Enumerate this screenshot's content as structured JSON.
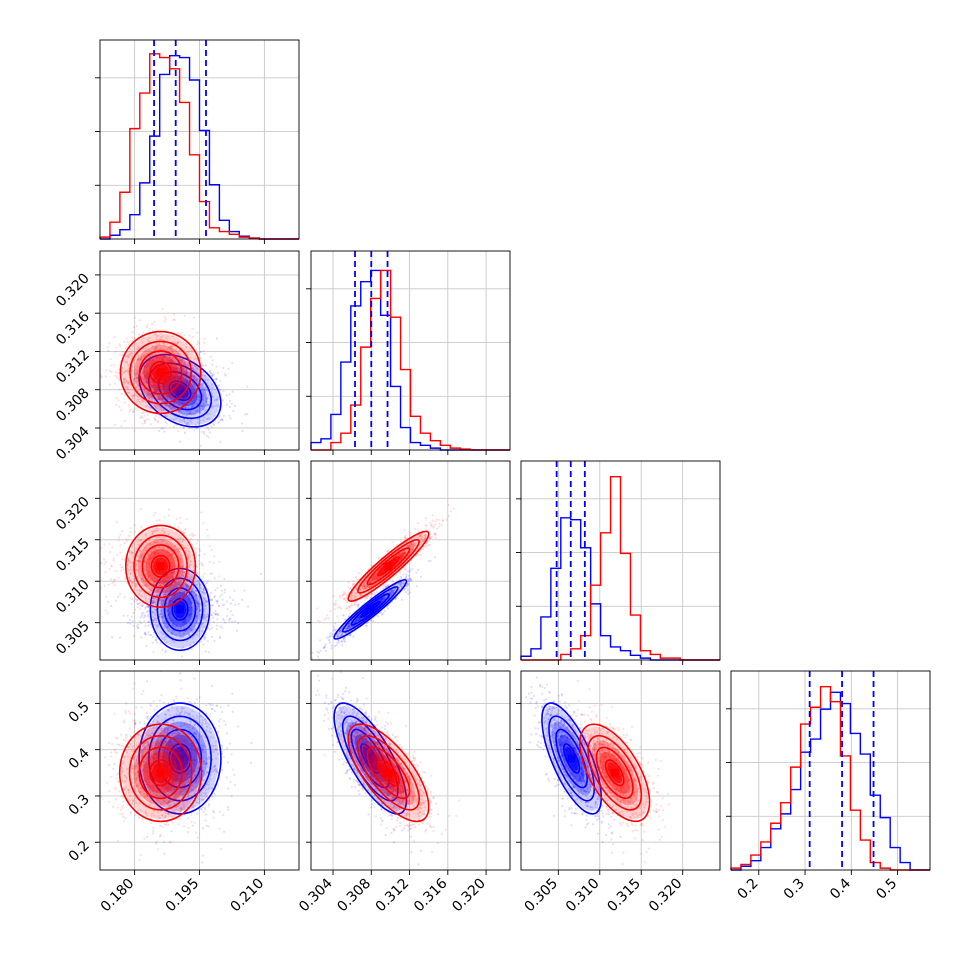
{
  "chart_data": {
    "type": "corner",
    "title": "",
    "series_colors": {
      "blue": "#0000ff",
      "red": "#ff0000"
    },
    "parameters": [
      {
        "id": "p1",
        "range": [
          0.172,
          0.218
        ],
        "ticks": [
          0.18,
          0.195,
          0.21
        ],
        "tick_labels": [
          "0.180",
          "0.195",
          "0.210"
        ]
      },
      {
        "id": "p2",
        "range": [
          0.3017,
          0.3225
        ],
        "ticks": [
          0.304,
          0.308,
          0.312,
          0.316,
          0.32
        ],
        "tick_labels": [
          "0.304",
          "0.308",
          "0.312",
          "0.316",
          "0.320"
        ]
      },
      {
        "id": "p3",
        "range": [
          0.3005,
          0.3245
        ],
        "ticks": [
          0.305,
          0.31,
          0.315,
          0.32
        ],
        "tick_labels": [
          "0.305",
          "0.310",
          "0.315",
          "0.320"
        ]
      },
      {
        "id": "p4",
        "range": [
          0.14,
          0.57
        ],
        "ticks": [
          0.2,
          0.3,
          0.4,
          0.5
        ],
        "tick_labels": [
          "0.2",
          "0.3",
          "0.4",
          "0.5"
        ]
      }
    ],
    "grid": true,
    "quantile_lines": {
      "color": "blue",
      "style": "dashed",
      "p1": [
        0.1845,
        0.1895,
        0.1965
      ],
      "p2": [
        0.3063,
        0.308,
        0.3097
      ],
      "p3": [
        0.3048,
        0.3065,
        0.3082
      ],
      "p4": [
        0.31,
        0.38,
        0.448
      ]
    },
    "series": [
      {
        "name": "",
        "color": "blue",
        "mean": [
          0.1905,
          0.3079,
          0.3066,
          0.381
        ],
        "std": [
          0.0045,
          0.0018,
          0.0017,
          0.057
        ],
        "corr": [
          [
            1,
            -0.35,
            0.0,
            0.0
          ],
          [
            -0.35,
            1,
            0.95,
            -0.75
          ],
          [
            0.0,
            0.95,
            1,
            -0.7
          ],
          [
            0.0,
            -0.75,
            -0.7,
            1
          ]
        ]
      },
      {
        "name": "",
        "color": "red",
        "mean": [
          0.186,
          0.3098,
          0.3118,
          0.35
        ],
        "std": [
          0.0045,
          0.002,
          0.002,
          0.05
        ],
        "corr": [
          [
            1,
            0.0,
            0.0,
            0.0
          ],
          [
            0.0,
            1,
            0.93,
            -0.7
          ],
          [
            0.0,
            0.93,
            1,
            -0.6
          ],
          [
            0.0,
            -0.7,
            -0.6,
            1
          ]
        ]
      }
    ],
    "histograms": [
      {
        "param": "p1",
        "bin_edges": [
          0.172,
          0.1743,
          0.1766,
          0.1789,
          0.1812,
          0.1835,
          0.1858,
          0.1881,
          0.1904,
          0.1927,
          0.195,
          0.1973,
          0.1996,
          0.2019,
          0.2042,
          0.2065,
          0.2088,
          0.2111,
          0.2134,
          0.2157,
          0.218
        ],
        "blue": [
          0.0,
          0.02,
          0.05,
          0.13,
          0.3,
          0.55,
          0.88,
          0.98,
          0.97,
          0.85,
          0.58,
          0.29,
          0.1,
          0.04,
          0.015,
          0.005,
          0.0,
          0.0,
          0.0,
          0.0
        ],
        "red": [
          0.01,
          0.09,
          0.25,
          0.59,
          0.78,
          0.99,
          0.97,
          0.91,
          0.73,
          0.45,
          0.2,
          0.06,
          0.04,
          0.025,
          0.01,
          0.005,
          0.0,
          0.0,
          0.0,
          0.0
        ]
      },
      {
        "param": "p2",
        "bin_edges": [
          0.3017,
          0.30274,
          0.30378,
          0.30482,
          0.30586,
          0.3069,
          0.30794,
          0.30898,
          0.31002,
          0.31106,
          0.3121,
          0.31314,
          0.31418,
          0.31522,
          0.31626,
          0.3173,
          0.31834,
          0.31938,
          0.32042,
          0.32146,
          0.3225
        ],
        "blue": [
          0.04,
          0.06,
          0.19,
          0.47,
          0.77,
          0.9,
          0.96,
          0.72,
          0.34,
          0.12,
          0.04,
          0.025,
          0.01,
          0.0,
          0.0,
          0.0,
          0.0,
          0.0,
          0.0,
          0.0
        ],
        "red": [
          0.0,
          0.0,
          0.04,
          0.09,
          0.24,
          0.55,
          0.81,
          0.96,
          0.71,
          0.43,
          0.18,
          0.09,
          0.05,
          0.025,
          0.01,
          0.005,
          0.0,
          0.0,
          0.0,
          0.0
        ]
      },
      {
        "param": "p3",
        "bin_edges": [
          0.3005,
          0.3017,
          0.3029,
          0.3041,
          0.3053,
          0.3065,
          0.3077,
          0.3089,
          0.3101,
          0.3113,
          0.3125,
          0.3137,
          0.3149,
          0.3161,
          0.3173,
          0.3185,
          0.3197,
          0.3209,
          0.3221,
          0.3233,
          0.3245
        ],
        "blue": [
          0.02,
          0.06,
          0.23,
          0.49,
          0.76,
          0.75,
          0.6,
          0.3,
          0.13,
          0.07,
          0.05,
          0.025,
          0.01,
          0.0,
          0.0,
          0.0,
          0.0,
          0.0,
          0.0,
          0.0
        ],
        "red": [
          0.0,
          0.0,
          0.0,
          0.0,
          0.03,
          0.06,
          0.13,
          0.4,
          0.68,
          0.98,
          0.57,
          0.24,
          0.05,
          0.03,
          0.01,
          0.01,
          0.0,
          0.0,
          0.0,
          0.0
        ]
      },
      {
        "param": "p4",
        "bin_edges": [
          0.14,
          0.1615,
          0.183,
          0.2045,
          0.226,
          0.2475,
          0.269,
          0.2905,
          0.312,
          0.3335,
          0.355,
          0.3765,
          0.398,
          0.4195,
          0.441,
          0.4625,
          0.484,
          0.5055,
          0.527,
          0.5485,
          0.57
        ],
        "blue": [
          0.0,
          0.02,
          0.05,
          0.12,
          0.22,
          0.3,
          0.43,
          0.63,
          0.7,
          0.86,
          0.95,
          0.89,
          0.73,
          0.62,
          0.4,
          0.28,
          0.12,
          0.04,
          0.0,
          0.0
        ],
        "red": [
          0.01,
          0.03,
          0.08,
          0.15,
          0.25,
          0.36,
          0.55,
          0.78,
          0.87,
          0.98,
          0.9,
          0.61,
          0.32,
          0.16,
          0.04,
          0.01,
          0.0,
          0.0,
          0.0,
          0.0
        ]
      }
    ]
  }
}
